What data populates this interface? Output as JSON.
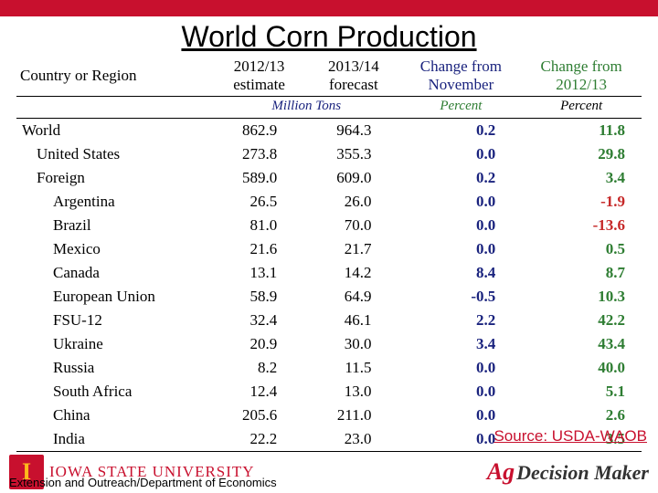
{
  "title": "World Corn Production",
  "source_label": "Source: USDA-WAOB",
  "footer_dept": "Extension and Outreach/Department of Economics",
  "isu_name": "IOWA STATE UNIVERSITY",
  "agd_text_1": "Ag",
  "agd_text_2": " Decision Maker",
  "table": {
    "headers": {
      "col1": "Country or Region",
      "col2_line1": "2012/13",
      "col2_line2": "estimate",
      "col3_line1": "2013/14",
      "col3_line2": "forecast",
      "col4_line1": "Change from",
      "col4_line2": "November",
      "col5_line1": "Change from",
      "col5_line2": "2012/13"
    },
    "units": {
      "u1": "Million Tons",
      "u2": "Percent",
      "u3": "Percent"
    },
    "rows": [
      {
        "name": "World",
        "indent": 0,
        "est": "862.9",
        "fcst": "964.3",
        "chg_nov": "0.2",
        "chg_yr": "11.8",
        "yr_neg": false
      },
      {
        "name": "United States",
        "indent": 1,
        "est": "273.8",
        "fcst": "355.3",
        "chg_nov": "0.0",
        "chg_yr": "29.8",
        "yr_neg": false
      },
      {
        "name": "Foreign",
        "indent": 1,
        "est": "589.0",
        "fcst": "609.0",
        "chg_nov": "0.2",
        "chg_yr": "3.4",
        "yr_neg": false
      },
      {
        "name": "Argentina",
        "indent": 2,
        "est": "26.5",
        "fcst": "26.0",
        "chg_nov": "0.0",
        "chg_yr": "-1.9",
        "yr_neg": true
      },
      {
        "name": "Brazil",
        "indent": 2,
        "est": "81.0",
        "fcst": "70.0",
        "chg_nov": "0.0",
        "chg_yr": "-13.6",
        "yr_neg": true
      },
      {
        "name": "Mexico",
        "indent": 2,
        "est": "21.6",
        "fcst": "21.7",
        "chg_nov": "0.0",
        "chg_yr": "0.5",
        "yr_neg": false
      },
      {
        "name": "Canada",
        "indent": 2,
        "est": "13.1",
        "fcst": "14.2",
        "chg_nov": "8.4",
        "chg_yr": "8.7",
        "yr_neg": false
      },
      {
        "name": "European Union",
        "indent": 2,
        "est": "58.9",
        "fcst": "64.9",
        "chg_nov": "-0.5",
        "chg_yr": "10.3",
        "yr_neg": false
      },
      {
        "name": "FSU-12",
        "indent": 2,
        "est": "32.4",
        "fcst": "46.1",
        "chg_nov": "2.2",
        "chg_yr": "42.2",
        "yr_neg": false
      },
      {
        "name": "Ukraine",
        "indent": 2,
        "est": "20.9",
        "fcst": "30.0",
        "chg_nov": "3.4",
        "chg_yr": "43.4",
        "yr_neg": false
      },
      {
        "name": "Russia",
        "indent": 2,
        "est": "8.2",
        "fcst": "11.5",
        "chg_nov": "0.0",
        "chg_yr": "40.0",
        "yr_neg": false
      },
      {
        "name": "South Africa",
        "indent": 2,
        "est": "12.4",
        "fcst": "13.0",
        "chg_nov": "0.0",
        "chg_yr": "5.1",
        "yr_neg": false
      },
      {
        "name": "China",
        "indent": 2,
        "est": "205.6",
        "fcst": "211.0",
        "chg_nov": "0.0",
        "chg_yr": "2.6",
        "yr_neg": false
      },
      {
        "name": "India",
        "indent": 2,
        "est": "22.2",
        "fcst": "23.0",
        "chg_nov": "0.0",
        "chg_yr": "3.5",
        "yr_neg": false
      }
    ]
  },
  "colors": {
    "brand_red": "#c8102e",
    "header_navy": "#1a237e",
    "header_green": "#2e7d32",
    "neg_red": "#c62828",
    "gold": "#ffb81c"
  }
}
